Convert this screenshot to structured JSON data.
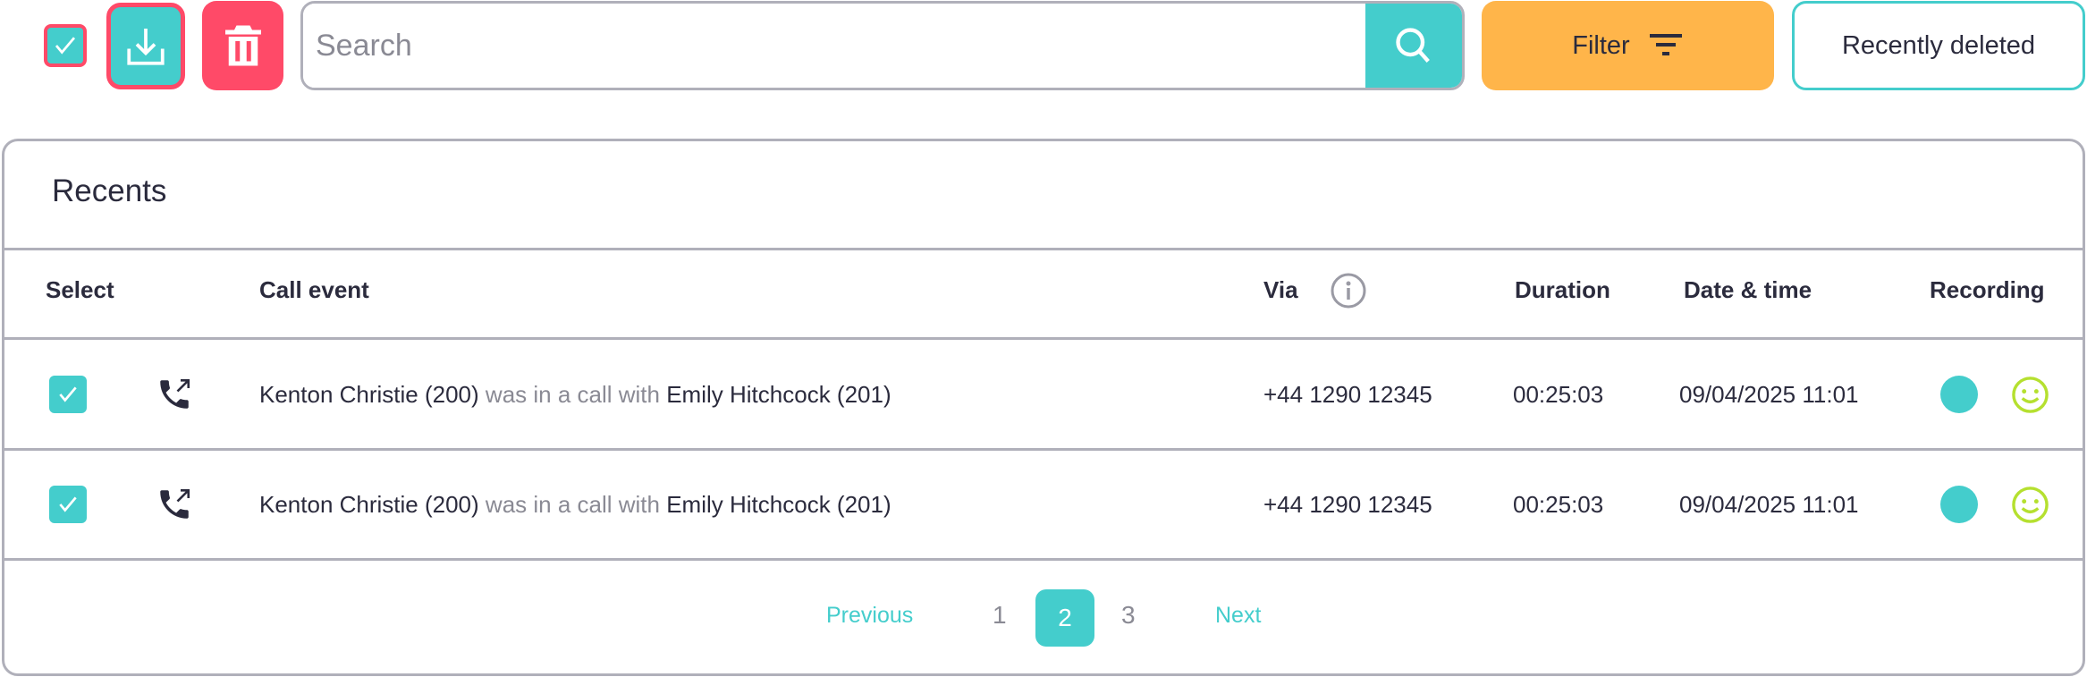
{
  "toolbar": {
    "search_placeholder": "Search",
    "filter_label": "Filter",
    "recently_deleted_label": "Recently deleted"
  },
  "panel": {
    "title": "Recents",
    "columns": {
      "select": "Select",
      "call_event": "Call event",
      "via": "Via",
      "duration": "Duration",
      "date_time": "Date & time",
      "recording": "Recording"
    },
    "rows": [
      {
        "caller": "Kenton Christie (200)",
        "verb": " was in a call with ",
        "callee": "Emily Hitchcock (201)",
        "via": "+44 1290 12345",
        "duration": "00:25:03",
        "date_time": "09/04/2025 11:01",
        "checked": true
      },
      {
        "caller": "Kenton Christie (200)",
        "verb": " was in a call with ",
        "callee": "Emily Hitchcock (201)",
        "via": "+44 1290 12345",
        "duration": "00:25:03",
        "date_time": "09/04/2025 11:01",
        "checked": true
      }
    ]
  },
  "pagination": {
    "previous": "Previous",
    "pages": [
      "1",
      "2",
      "3"
    ],
    "current": "2",
    "next": "Next"
  },
  "colors": {
    "teal": "#44cdcc",
    "red": "#ff4a68",
    "orange": "#ffb54a",
    "smiley": "#b5e02f"
  }
}
